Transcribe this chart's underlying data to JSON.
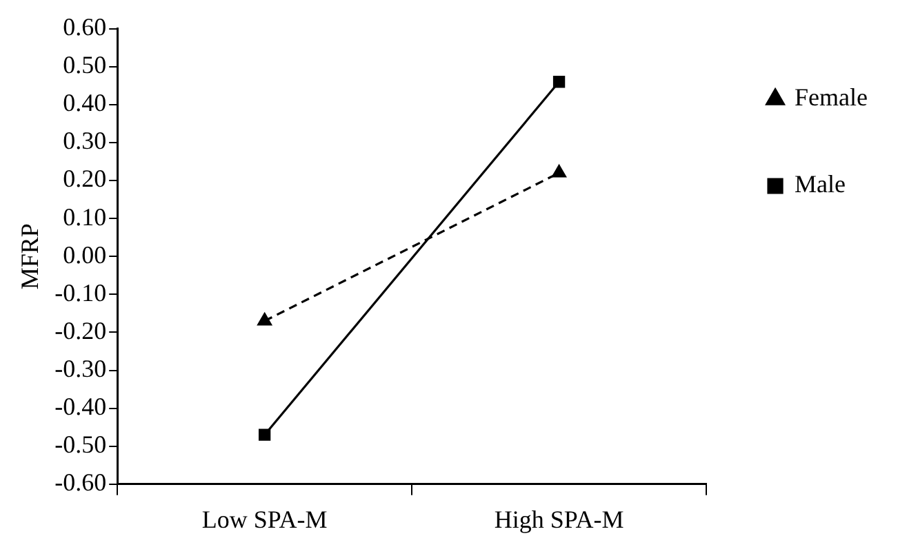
{
  "chart_data": {
    "type": "line",
    "ylabel": "MFRP",
    "categories": [
      "Low SPA-M",
      "High SPA-M"
    ],
    "series": [
      {
        "name": "Female",
        "color": "#000000",
        "values": [
          -0.17,
          0.22
        ],
        "marker": "triangle",
        "line_style": "dashed"
      },
      {
        "name": "Male",
        "color": "#000000",
        "values": [
          -0.47,
          0.46
        ],
        "marker": "square",
        "line_style": "solid"
      }
    ],
    "ylim": [
      -0.6,
      0.6
    ],
    "yticks": [
      {
        "value": -0.6,
        "label": "-0.60"
      },
      {
        "value": -0.5,
        "label": "-0.50"
      },
      {
        "value": -0.4,
        "label": "-0.40"
      },
      {
        "value": -0.3,
        "label": "-0.30"
      },
      {
        "value": -0.2,
        "label": "-0.20"
      },
      {
        "value": -0.1,
        "label": "-0.10"
      },
      {
        "value": 0,
        "label": "0.00"
      },
      {
        "value": 0.1,
        "label": "0.10"
      },
      {
        "value": 0.2,
        "label": "0.20"
      },
      {
        "value": 0.3,
        "label": "0.30"
      },
      {
        "value": 0.4,
        "label": "0.40"
      },
      {
        "value": 0.5,
        "label": "0.50"
      },
      {
        "value": 0.6,
        "label": "0.60"
      }
    ],
    "grid": false,
    "legend": "right"
  }
}
